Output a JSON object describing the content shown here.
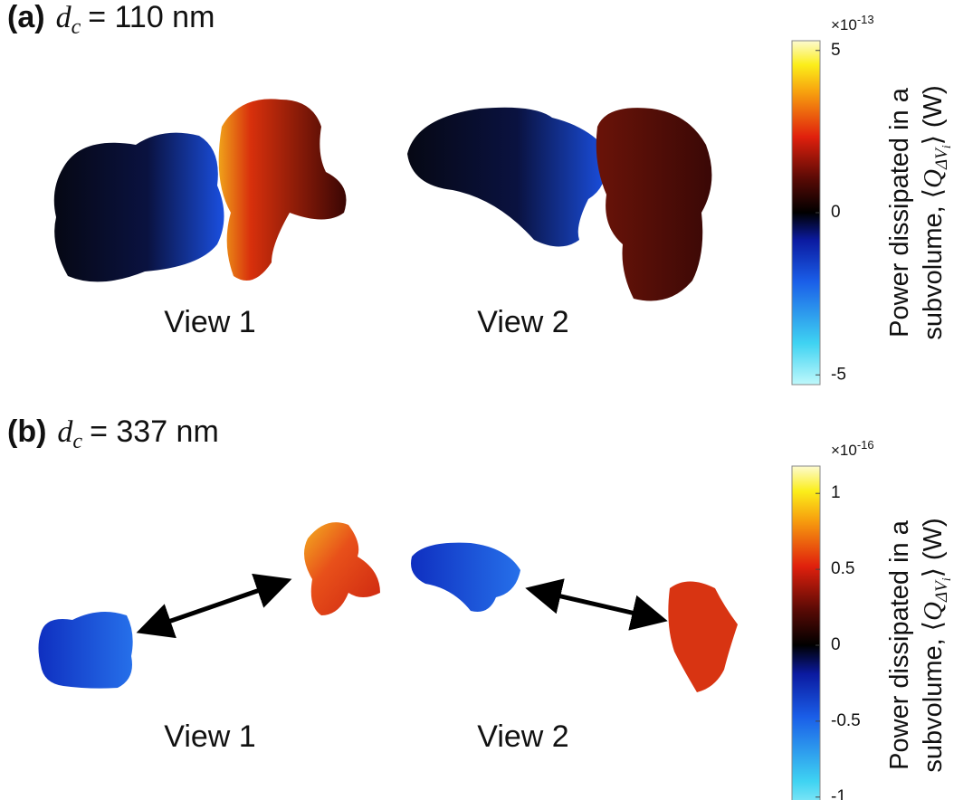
{
  "panels": [
    {
      "label": "(a)",
      "variable": "d",
      "subscript": "c",
      "equation": "= 110 nm",
      "views": [
        "View 1",
        "View 2"
      ],
      "colorbar": {
        "ylim": [
          -5.3,
          5.3
        ],
        "yticks": [
          5,
          0,
          -5
        ],
        "exponent_base": "×10",
        "exponent": "-13",
        "label_line1": "Power dissipated in a",
        "label_prefix": "subvolume,",
        "open": "⟨",
        "symbol": "Q",
        "symbol_sub": "ΔV",
        "symbol_subsub": "i",
        "close": "⟩",
        "unit": "(W)"
      }
    },
    {
      "label": "(b)",
      "variable": "d",
      "subscript": "c",
      "equation": "= 337 nm",
      "views": [
        "View 1",
        "View 2"
      ],
      "colorbar": {
        "ylim": [
          -1.18,
          1.18
        ],
        "yticks": [
          1,
          0.5,
          0,
          -0.5,
          -1
        ],
        "exponent_base": "×10",
        "exponent": "-16",
        "label_line1": "Power dissipated in a",
        "label_prefix": "subvolume,",
        "open": "⟨",
        "symbol": "Q",
        "symbol_sub": "ΔV",
        "symbol_subsub": "i",
        "close": "⟩",
        "unit": "(W)"
      }
    }
  ]
}
